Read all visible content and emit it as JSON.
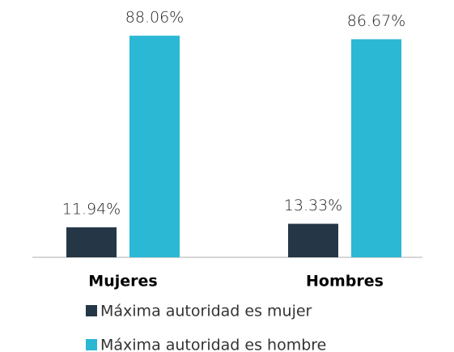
{
  "chart_data": {
    "type": "bar",
    "categories": [
      "Mujeres",
      "Hombres"
    ],
    "series": [
      {
        "name": "Máxima autoridad es mujer",
        "color": "#253746",
        "values": [
          11.94,
          13.33
        ],
        "value_labels": [
          "11.94%",
          "13.33%"
        ]
      },
      {
        "name": "Máxima autoridad es hombre",
        "color": "#2bb8d4",
        "values": [
          88.06,
          86.67
        ],
        "value_labels": [
          "88.06%",
          "86.67%"
        ]
      }
    ],
    "ylim": [
      0,
      100
    ]
  }
}
